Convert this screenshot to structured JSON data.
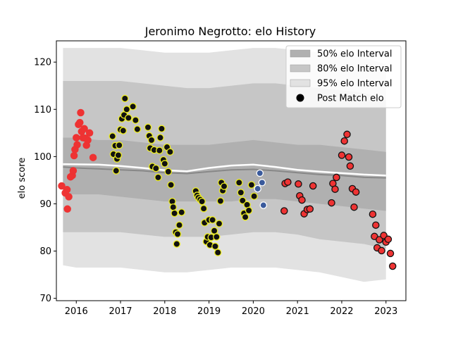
{
  "chart_data": {
    "type": "scatter",
    "title": "Jeronimo Negrotto: elo History",
    "xlabel": "",
    "ylabel": "elo score",
    "xlim": [
      2015.55,
      2023.45
    ],
    "ylim": [
      69.5,
      124.5
    ],
    "x_ticks": [
      2016,
      2017,
      2018,
      2019,
      2020,
      2021,
      2022,
      2023
    ],
    "y_ticks": [
      70,
      80,
      90,
      100,
      110,
      120
    ],
    "grid": false,
    "legend_position": "top-right",
    "legend": [
      {
        "label": "50% elo Interval",
        "kind": "band",
        "color": "#b0b0b0"
      },
      {
        "label": "80% elo Interval",
        "kind": "band",
        "color": "#c6c6c6"
      },
      {
        "label": "95% elo Interval",
        "kind": "band",
        "color": "#e2e2e2"
      },
      {
        "label": "Post Match elo",
        "kind": "marker",
        "color": "#000000"
      }
    ],
    "intervals": {
      "x": [
        2015.7,
        2016.0,
        2016.5,
        2017.0,
        2017.5,
        2018.0,
        2018.5,
        2019.0,
        2019.5,
        2020.0,
        2020.5,
        2021.0,
        2021.5,
        2022.0,
        2022.5,
        2023.0
      ],
      "center": [
        97.8,
        97.6,
        97.4,
        97.2,
        97.0,
        96.6,
        96.4,
        96.8,
        97.2,
        97.3,
        97.0,
        96.6,
        96.2,
        96.0,
        95.6,
        95.5
      ],
      "p50_low": [
        92.0,
        92.0,
        92.0,
        91.5,
        91.0,
        90.5,
        90.5,
        90.5,
        90.5,
        91.0,
        91.0,
        90.5,
        90.0,
        89.5,
        89.0,
        88.5
      ],
      "p50_high": [
        104.0,
        104.0,
        103.5,
        103.5,
        103.0,
        102.5,
        102.5,
        102.5,
        103.0,
        103.5,
        103.0,
        102.5,
        102.5,
        102.0,
        101.5,
        101.0
      ],
      "p80_low": [
        84.0,
        84.0,
        84.0,
        84.0,
        83.5,
        83.0,
        83.0,
        83.0,
        83.5,
        84.0,
        84.0,
        83.5,
        82.5,
        82.0,
        81.5,
        80.5
      ],
      "p80_high": [
        116.0,
        116.0,
        116.0,
        116.0,
        115.5,
        115.0,
        114.5,
        114.5,
        115.0,
        115.5,
        115.5,
        115.0,
        114.5,
        114.0,
        113.5,
        112.0
      ],
      "p95_low": [
        77.0,
        76.5,
        76.5,
        76.5,
        76.0,
        75.5,
        75.5,
        76.0,
        76.5,
        76.5,
        76.5,
        76.0,
        75.5,
        74.5,
        73.5,
        74.0
      ],
      "p95_high": [
        123.0,
        123.0,
        123.0,
        123.0,
        122.5,
        122.0,
        122.0,
        122.0,
        122.5,
        123.0,
        123.0,
        122.5,
        122.0,
        121.5,
        121.0,
        119.5
      ]
    },
    "white_line": {
      "x": [
        2015.7,
        2016.5,
        2017.0,
        2017.5,
        2018.0,
        2018.5,
        2019.0,
        2019.5,
        2020.0,
        2020.5,
        2021.0,
        2021.5,
        2022.0,
        2022.5,
        2023.0
      ],
      "y": [
        98.4,
        98.3,
        98.0,
        97.6,
        97.1,
        96.9,
        97.6,
        98.1,
        98.3,
        97.8,
        97.2,
        96.8,
        96.5,
        96.2,
        96.0
      ]
    },
    "series": [
      {
        "period": "2016",
        "color": "#ee3333",
        "edge": "#ee3333",
        "points": [
          [
            2015.67,
            93.8
          ],
          [
            2015.75,
            92.3
          ],
          [
            2015.79,
            93.0
          ],
          [
            2015.8,
            88.9
          ],
          [
            2015.83,
            91.5
          ],
          [
            2015.87,
            95.7
          ],
          [
            2015.91,
            96.0
          ],
          [
            2015.93,
            97.0
          ],
          [
            2015.95,
            100.2
          ],
          [
            2015.97,
            101.5
          ],
          [
            2016.0,
            104.0
          ],
          [
            2016.02,
            102.5
          ],
          [
            2016.05,
            106.8
          ],
          [
            2016.08,
            107.2
          ],
          [
            2016.1,
            109.3
          ],
          [
            2016.12,
            105.3
          ],
          [
            2016.15,
            104.0
          ],
          [
            2016.18,
            105.9
          ],
          [
            2016.2,
            103.9
          ],
          [
            2016.23,
            102.4
          ],
          [
            2016.26,
            103.5
          ],
          [
            2016.3,
            105.0
          ],
          [
            2016.38,
            99.8
          ]
        ]
      },
      {
        "period": "2017-2019",
        "color": "#111111",
        "edge": "#eeee22",
        "points": [
          [
            2016.82,
            104.3
          ],
          [
            2016.84,
            100.5
          ],
          [
            2016.88,
            102.3
          ],
          [
            2016.9,
            97.0
          ],
          [
            2016.92,
            99.5
          ],
          [
            2016.95,
            100.3
          ],
          [
            2016.97,
            102.4
          ],
          [
            2017.0,
            105.7
          ],
          [
            2017.03,
            108.0
          ],
          [
            2017.06,
            105.5
          ],
          [
            2017.08,
            108.8
          ],
          [
            2017.1,
            112.3
          ],
          [
            2017.14,
            110.0
          ],
          [
            2017.18,
            108.2
          ],
          [
            2017.28,
            110.6
          ],
          [
            2017.34,
            107.7
          ],
          [
            2017.38,
            105.8
          ],
          [
            2017.62,
            106.2
          ],
          [
            2017.65,
            104.4
          ],
          [
            2017.67,
            101.8
          ],
          [
            2017.7,
            103.5
          ],
          [
            2017.72,
            97.9
          ],
          [
            2017.76,
            101.4
          ],
          [
            2017.8,
            97.5
          ],
          [
            2017.85,
            95.6
          ],
          [
            2017.88,
            101.3
          ],
          [
            2017.9,
            104.0
          ],
          [
            2017.93,
            105.9
          ],
          [
            2017.97,
            99.3
          ],
          [
            2018.0,
            98.5
          ],
          [
            2018.05,
            102.0
          ],
          [
            2018.08,
            96.8
          ],
          [
            2018.12,
            101.0
          ],
          [
            2018.14,
            94.0
          ],
          [
            2018.17,
            90.5
          ],
          [
            2018.19,
            89.3
          ],
          [
            2018.22,
            88.0
          ],
          [
            2018.25,
            84.0
          ],
          [
            2018.27,
            81.5
          ],
          [
            2018.29,
            83.6
          ],
          [
            2018.33,
            85.5
          ],
          [
            2018.38,
            88.2
          ],
          [
            2018.7,
            92.7
          ],
          [
            2018.73,
            91.8
          ],
          [
            2018.76,
            91.3
          ],
          [
            2018.8,
            90.9
          ],
          [
            2018.84,
            90.5
          ],
          [
            2018.88,
            89.0
          ],
          [
            2018.9,
            86.0
          ],
          [
            2018.94,
            82.0
          ],
          [
            2018.97,
            83.0
          ],
          [
            2019.0,
            86.6
          ],
          [
            2019.02,
            81.3
          ],
          [
            2019.05,
            82.9
          ],
          [
            2019.08,
            86.6
          ],
          [
            2019.12,
            84.3
          ],
          [
            2019.14,
            81.0
          ],
          [
            2019.17,
            83.0
          ],
          [
            2019.2,
            79.7
          ],
          [
            2019.23,
            85.8
          ],
          [
            2019.26,
            90.6
          ],
          [
            2019.28,
            94.5
          ],
          [
            2019.31,
            92.8
          ],
          [
            2019.34,
            93.7
          ],
          [
            2019.68,
            94.5
          ],
          [
            2019.72,
            92.4
          ],
          [
            2019.76,
            90.7
          ],
          [
            2019.79,
            88.0
          ],
          [
            2019.82,
            87.2
          ],
          [
            2019.86,
            89.8
          ],
          [
            2019.9,
            88.6
          ],
          [
            2019.96,
            94.0
          ],
          [
            2020.02,
            91.6
          ]
        ]
      },
      {
        "period": "2020",
        "color": "#3a5a9c",
        "edge": "#ffffff",
        "points": [
          [
            2020.1,
            93.2
          ],
          [
            2020.15,
            96.5
          ],
          [
            2020.2,
            94.5
          ],
          [
            2020.23,
            89.7
          ]
        ]
      },
      {
        "period": "2021-2023",
        "color": "#ee3333",
        "edge": "#111111",
        "points": [
          [
            2020.7,
            88.5
          ],
          [
            2020.72,
            94.3
          ],
          [
            2020.78,
            94.6
          ],
          [
            2021.02,
            94.2
          ],
          [
            2021.05,
            91.7
          ],
          [
            2021.1,
            90.8
          ],
          [
            2021.15,
            87.9
          ],
          [
            2021.22,
            88.8
          ],
          [
            2021.28,
            88.9
          ],
          [
            2021.35,
            93.8
          ],
          [
            2021.77,
            90.2
          ],
          [
            2021.8,
            94.3
          ],
          [
            2021.85,
            93.1
          ],
          [
            2021.88,
            95.6
          ],
          [
            2022.0,
            100.3
          ],
          [
            2022.06,
            103.3
          ],
          [
            2022.12,
            104.7
          ],
          [
            2022.16,
            99.9
          ],
          [
            2022.19,
            98.0
          ],
          [
            2022.24,
            93.2
          ],
          [
            2022.28,
            89.3
          ],
          [
            2022.32,
            92.5
          ],
          [
            2022.7,
            87.8
          ],
          [
            2022.74,
            83.1
          ],
          [
            2022.77,
            85.5
          ],
          [
            2022.8,
            80.7
          ],
          [
            2022.85,
            82.4
          ],
          [
            2022.9,
            80.1
          ],
          [
            2022.95,
            83.3
          ],
          [
            2023.0,
            81.9
          ],
          [
            2023.05,
            82.5
          ],
          [
            2023.1,
            79.5
          ],
          [
            2023.15,
            76.8
          ]
        ]
      }
    ]
  }
}
